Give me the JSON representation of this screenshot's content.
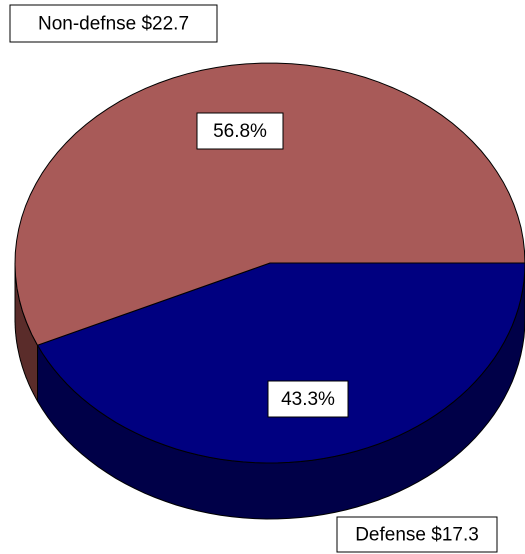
{
  "chart_data": {
    "type": "pie",
    "categories": [
      "Defense $17.3",
      "Non-defnse $22.7"
    ],
    "values": [
      43.3,
      56.8
    ],
    "value_labels": [
      "43.3%",
      "56.8%"
    ],
    "colors": [
      "#000080",
      "#a85a58"
    ],
    "side_colors": [
      "#000048",
      "#5a2c2a"
    ]
  }
}
